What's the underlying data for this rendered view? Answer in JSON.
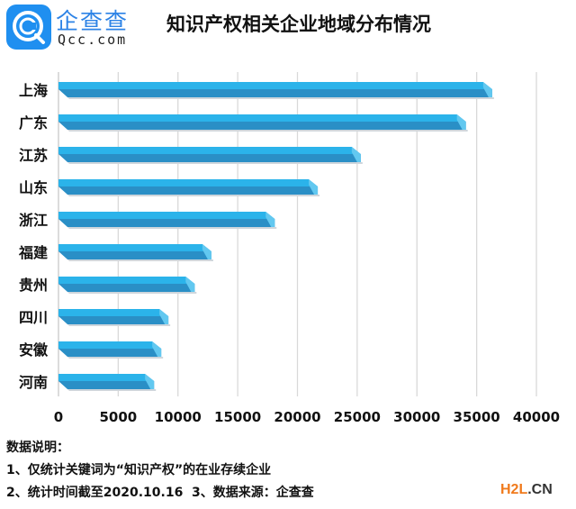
{
  "brand": {
    "name_cn": "企查查",
    "name_en": "Qcc.com",
    "logo_icon": "qcc-logo-icon"
  },
  "watermark": {
    "part1": "H2L",
    "part2": ".CN"
  },
  "notes": {
    "heading": "数据说明：",
    "line1": "1、仅统计关键词为“知识产权”的在业存续企业",
    "line2": "2、统计时间截至2020.10.16  3、数据来源：企查查"
  },
  "colors": {
    "bar_top": "#2bb3ea",
    "bar_bottom": "#2a8fc6",
    "bar_end": "#62c8f0",
    "grid": "#d9d9d9"
  },
  "chart_data": {
    "type": "bar",
    "orientation": "horizontal",
    "title": "知识产权相关企业地域分布情况",
    "xlabel": "",
    "ylabel": "",
    "categories": [
      "上海",
      "广东",
      "江苏",
      "山东",
      "浙江",
      "福建",
      "贵州",
      "四川",
      "安徽",
      "河南"
    ],
    "values": [
      36300,
      34100,
      25300,
      21700,
      18100,
      12800,
      11400,
      9200,
      8600,
      8000
    ],
    "xlim": [
      0,
      40000
    ],
    "xticks": [
      "0",
      "5000",
      "10000",
      "15000",
      "20000",
      "25000",
      "30000",
      "35000",
      "40000"
    ],
    "grid": true,
    "legend": "none"
  }
}
